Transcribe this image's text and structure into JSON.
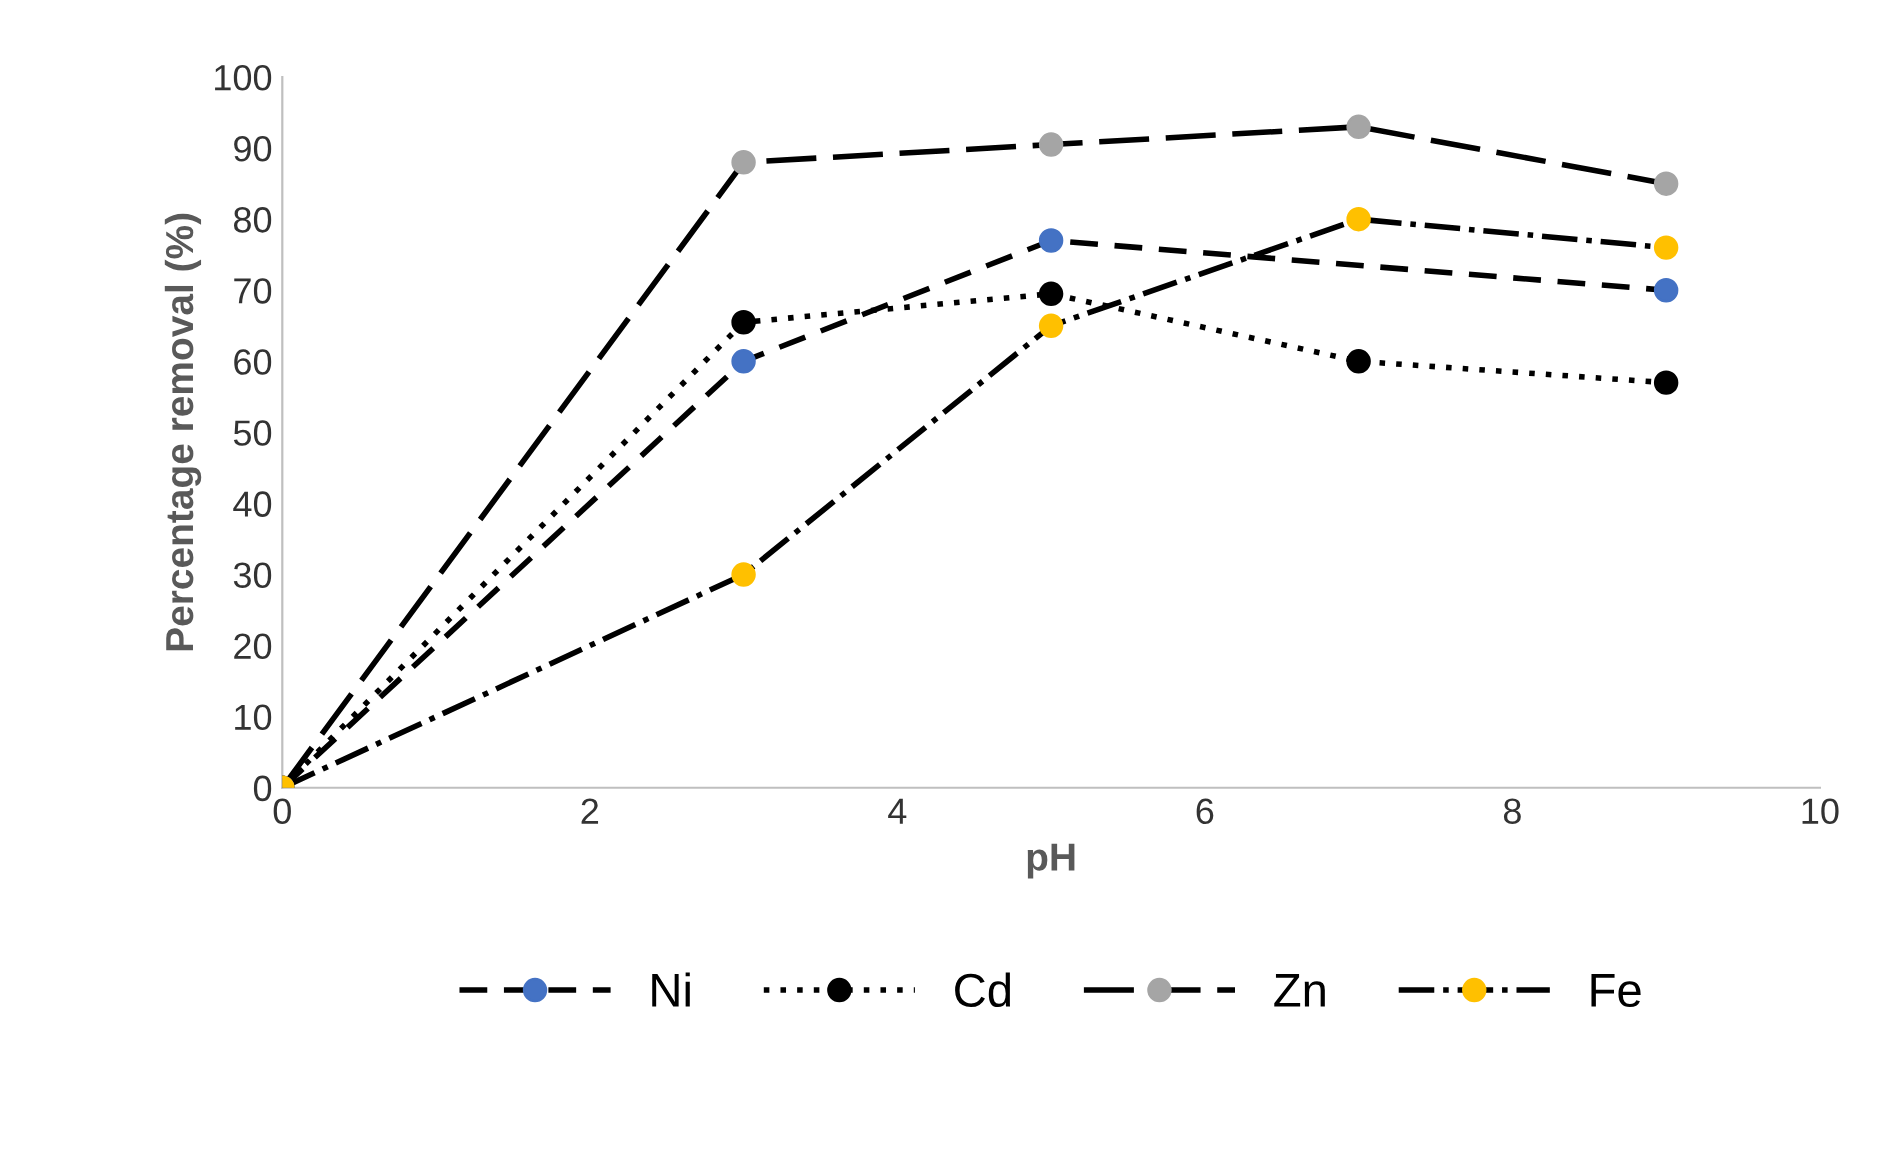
{
  "chart_data": {
    "type": "line",
    "xlabel": "pH",
    "ylabel": "Percentage removal (%)",
    "x": [
      0,
      3,
      5,
      7,
      9
    ],
    "series": [
      {
        "name": "Ni",
        "color": "#4472c4",
        "line_style": "dashed",
        "values": [
          0,
          60,
          77,
          null,
          70
        ]
      },
      {
        "name": "Cd",
        "color": "#000000",
        "line_style": "dotted",
        "values": [
          0,
          65.5,
          69.5,
          60,
          57
        ]
      },
      {
        "name": "Zn",
        "color": "#a5a5a5",
        "line_style": "longdash",
        "values": [
          0,
          88,
          90.5,
          93,
          85
        ]
      },
      {
        "name": "Fe",
        "color": "#ffc000",
        "line_style": "dashdot",
        "values": [
          0,
          30,
          65,
          80,
          76
        ]
      }
    ],
    "marker": "circle",
    "xlim": [
      0,
      10
    ],
    "xticks": [
      0,
      2,
      4,
      6,
      8,
      10
    ],
    "ylim": [
      0,
      100
    ],
    "yticks": [
      0,
      10,
      20,
      30,
      40,
      50,
      60,
      70,
      80,
      90,
      100
    ],
    "grid": false,
    "legend": "bottom"
  }
}
